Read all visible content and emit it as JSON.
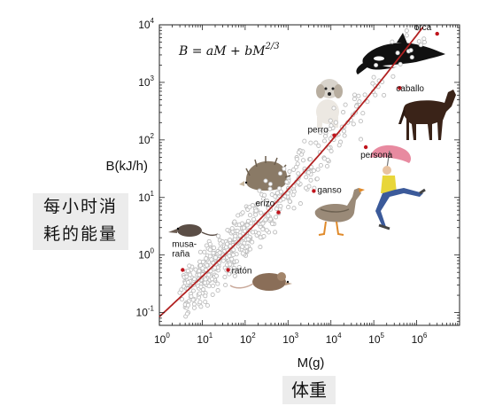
{
  "chart_data": {
    "type": "scatter",
    "xlabel": "M(g)",
    "ylabel": "B(kJ/h)",
    "xscale": "log",
    "yscale": "log",
    "xlim": [
      1,
      10000000
    ],
    "ylim": [
      0.06,
      10000
    ],
    "x_ticks": [
      {
        "base": "10",
        "exp": "0",
        "value": 1
      },
      {
        "base": "10",
        "exp": "1",
        "value": 10
      },
      {
        "base": "10",
        "exp": "2",
        "value": 100
      },
      {
        "base": "10",
        "exp": "3",
        "value": 1000
      },
      {
        "base": "10",
        "exp": "4",
        "value": 10000
      },
      {
        "base": "10",
        "exp": "5",
        "value": 100000
      },
      {
        "base": "10",
        "exp": "6",
        "value": 1000000
      }
    ],
    "y_ticks": [
      {
        "base": "10",
        "exp": "-1",
        "value": 0.1
      },
      {
        "base": "10",
        "exp": "0",
        "value": 1
      },
      {
        "base": "10",
        "exp": "1",
        "value": 10
      },
      {
        "base": "10",
        "exp": "2",
        "value": 100
      },
      {
        "base": "10",
        "exp": "3",
        "value": 1000
      },
      {
        "base": "10",
        "exp": "4",
        "value": 10000
      }
    ],
    "equation": {
      "prefix": "B = aM + bM",
      "superscript": "2/3"
    },
    "fit_curve": {
      "a": 0.0058,
      "b": 0.079,
      "color": "#b22222"
    },
    "labeled_points": [
      {
        "label": "orca",
        "x": 3000000,
        "y": 7000
      },
      {
        "label": "caballo",
        "x": 400000,
        "y": 800
      },
      {
        "label": "perro",
        "x": 12000,
        "y": 120
      },
      {
        "label": "persona",
        "x": 65000,
        "y": 75
      },
      {
        "label": "erizo",
        "x": 600,
        "y": 5.5
      },
      {
        "label": "ganso",
        "x": 4000,
        "y": 13
      },
      {
        "label": "musa-\nraña",
        "x": 3.5,
        "y": 0.55
      },
      {
        "label": "ratón",
        "x": 40,
        "y": 0.55
      }
    ],
    "scatter_color": "#bdbdbd",
    "point_color": "#c0141c"
  },
  "annotations": {
    "ylabel_cn_line1": "每小时消",
    "ylabel_cn_line2": "耗的能量",
    "xlabel_cn": "体重"
  }
}
